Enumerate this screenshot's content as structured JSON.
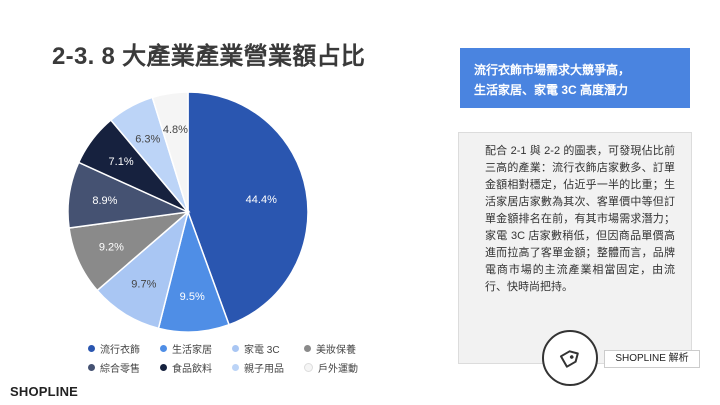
{
  "title": "2-3. 8 大產業產業營業額占比",
  "banner": {
    "line1": "流行衣飾市場需求大競爭高，",
    "line2": "生活家居、家電 3C 高度潛力"
  },
  "panel_text": "配合 2-1 與 2-2 的圖表，可發現佔比前三高的產業：流行衣飾店家數多、訂單金額相對穩定，佔近乎一半的比重；生活家居店家數為其次、客單價中等但訂單金額排名在前，有其市場需求潛力；家電 3C 店家數稍低，但因商品單價高進而拉高了客單金額；整體而言，品牌電商市場的主流產業相當固定，由流行、快時尚把持。",
  "badge": {
    "label": "SHOPLINE 解析",
    "icon": "tag-icon"
  },
  "logo": "SHOPLINE",
  "chart_data": {
    "type": "pie",
    "title": "2-3. 8 大產業產業營業額占比",
    "legend_position": "bottom",
    "slices": [
      {
        "name": "流行衣飾",
        "value": 44.4,
        "label": "44.4%",
        "color": "#2a56b0"
      },
      {
        "name": "生活家居",
        "value": 9.5,
        "label": "9.5%",
        "color": "#4f8ee6"
      },
      {
        "name": "家電 3C",
        "value": 9.7,
        "label": "9.7%",
        "color": "#a9c6f3"
      },
      {
        "name": "美妝保養",
        "value": 9.2,
        "label": "9.2%",
        "color": "#8a8a8a"
      },
      {
        "name": "綜合零售",
        "value": 8.9,
        "label": "8.9%",
        "color": "#455272"
      },
      {
        "name": "食品飲料",
        "value": 7.1,
        "label": "7.1%",
        "color": "#16213e"
      },
      {
        "name": "親子用品",
        "value": 6.3,
        "label": "6.3%",
        "color": "#bcd4f7"
      },
      {
        "name": "戶外運動",
        "value": 4.8,
        "label": "4.8%",
        "color": "#f5f5f5"
      }
    ]
  }
}
